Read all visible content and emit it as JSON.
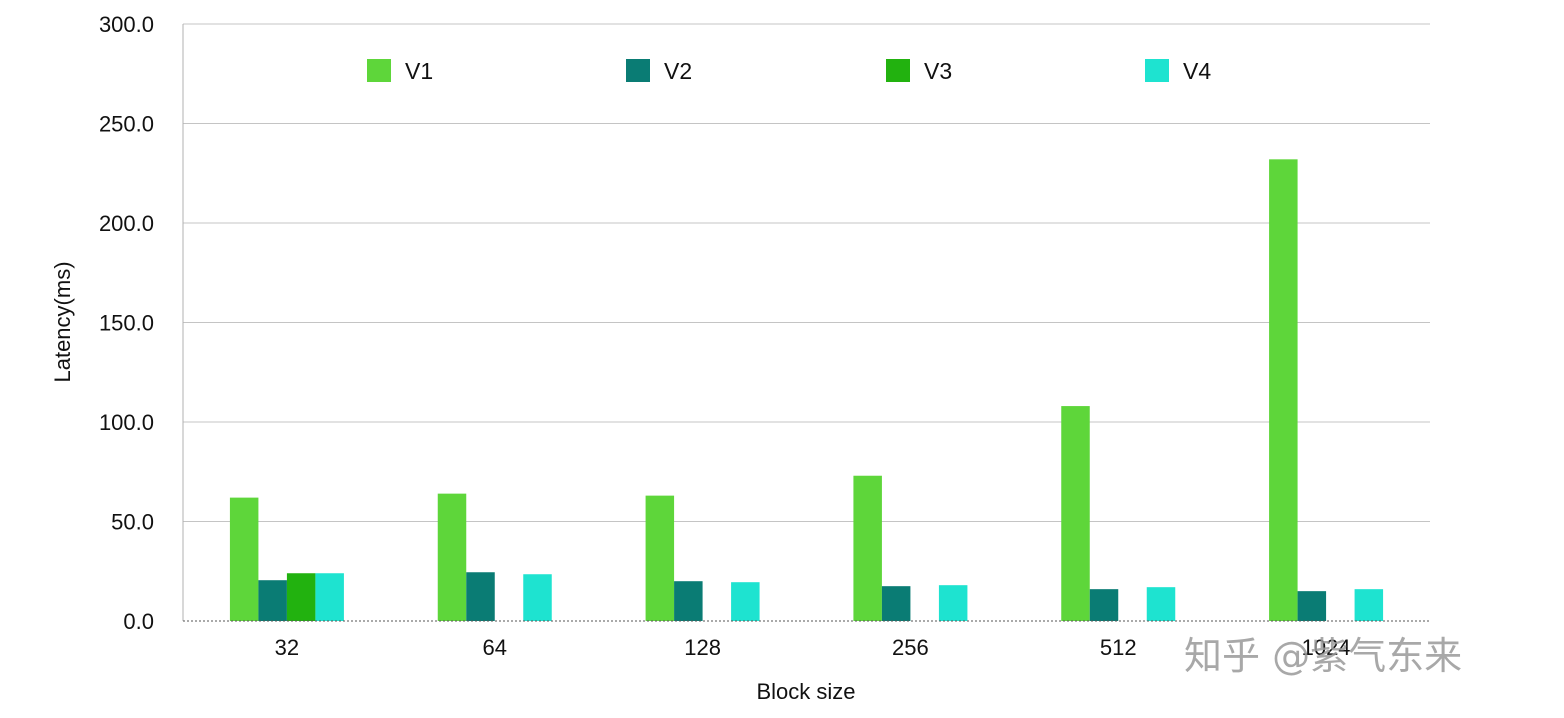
{
  "chart_data": {
    "type": "bar",
    "categories": [
      "32",
      "64",
      "128",
      "256",
      "512",
      "1024"
    ],
    "series": [
      {
        "name": "V1",
        "color": "#5ed63a",
        "values": [
          62,
          64,
          63,
          73,
          108,
          232
        ]
      },
      {
        "name": "V2",
        "color": "#0a7c74",
        "values": [
          20.5,
          24.5,
          20,
          17.5,
          16,
          15
        ]
      },
      {
        "name": "V3",
        "color": "#22b20f",
        "values": [
          24,
          null,
          null,
          null,
          null,
          null
        ]
      },
      {
        "name": "V4",
        "color": "#1ee3d0",
        "values": [
          24,
          23.5,
          19.5,
          18,
          17,
          16
        ]
      }
    ],
    "title": "",
    "xlabel": "Block size",
    "ylabel": "Latency(ms)",
    "ylim": [
      0,
      300
    ],
    "yticks": [
      "0.0",
      "50.0",
      "100.0",
      "150.0",
      "200.0",
      "250.0",
      "300.0"
    ],
    "grid": true,
    "legend_position": "top"
  },
  "watermark": "知乎 @紫气东来"
}
